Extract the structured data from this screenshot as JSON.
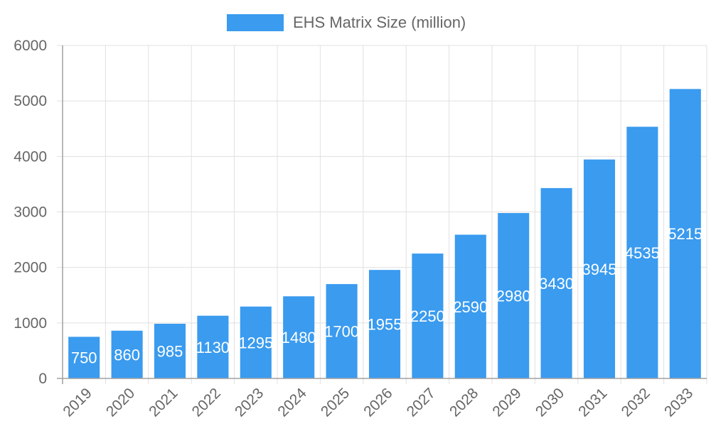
{
  "legend": {
    "label": "EHS Matrix Size (million)",
    "color": "#3a9bef"
  },
  "chart_data": {
    "type": "bar",
    "title": "",
    "xlabel": "",
    "ylabel": "",
    "categories": [
      "2019",
      "2020",
      "2021",
      "2022",
      "2023",
      "2024",
      "2025",
      "2026",
      "2027",
      "2028",
      "2029",
      "2030",
      "2031",
      "2032",
      "2033"
    ],
    "series": [
      {
        "name": "EHS Matrix Size (million)",
        "values": [
          750,
          860,
          985,
          1130,
          1295,
          1480,
          1700,
          1955,
          2250,
          2590,
          2980,
          3430,
          3945,
          4535,
          5215
        ],
        "color": "#3a9bef"
      }
    ],
    "ylim": [
      0,
      6000
    ],
    "yticks": [
      0,
      1000,
      2000,
      3000,
      4000,
      5000,
      6000
    ],
    "grid": true,
    "legend_position": "top",
    "data_labels": true,
    "x_tick_rotation": -45
  },
  "colors": {
    "bar": "#3a9bef",
    "grid": "#e0e0e0",
    "axis": "#a0a0a0",
    "tick_text": "#666666",
    "data_label": "#ffffff"
  }
}
